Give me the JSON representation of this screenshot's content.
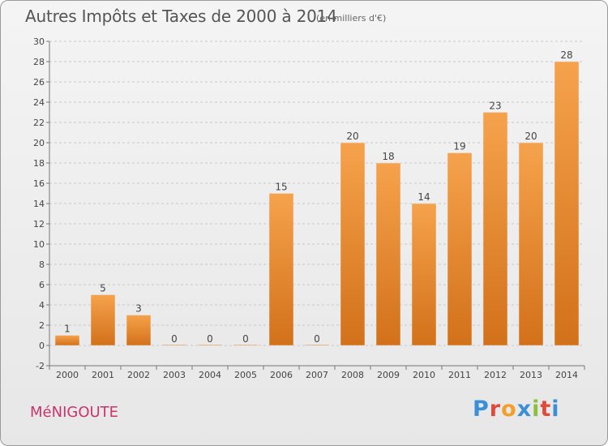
{
  "header": {
    "title": "Autres Impôts et Taxes de 2000 à 2014",
    "subtitle": "(en milliers d'€)"
  },
  "footer": {
    "town": "MéNIGOUTE",
    "logo_letters": [
      "P",
      "r",
      "o",
      "x",
      "i",
      "t",
      "i"
    ],
    "logo_colors": [
      "#3a8fd6",
      "#e04a3c",
      "#f2a02a",
      "#3a8fd6",
      "#8bbf3c",
      "#e04a3c",
      "#3a8fd6"
    ]
  },
  "chart_data": {
    "type": "bar",
    "categories": [
      "2000",
      "2001",
      "2002",
      "2003",
      "2004",
      "2005",
      "2006",
      "2007",
      "2008",
      "2009",
      "2010",
      "2011",
      "2012",
      "2013",
      "2014"
    ],
    "values": [
      1,
      5,
      3,
      0,
      0,
      0,
      15,
      0,
      20,
      18,
      14,
      19,
      23,
      20,
      28
    ],
    "data_labels": [
      "1",
      "5",
      "3",
      "0",
      "0",
      "0",
      "15",
      "0",
      "20",
      "18",
      "14",
      "19",
      "23",
      "20",
      "28"
    ],
    "ylim": [
      -2,
      30
    ],
    "yticks": [
      -2,
      0,
      2,
      4,
      6,
      8,
      10,
      12,
      14,
      16,
      18,
      20,
      22,
      24,
      26,
      28,
      30
    ],
    "bar_color_light": "#f6a24c",
    "bar_color_dark": "#d2711a",
    "grid": true
  }
}
